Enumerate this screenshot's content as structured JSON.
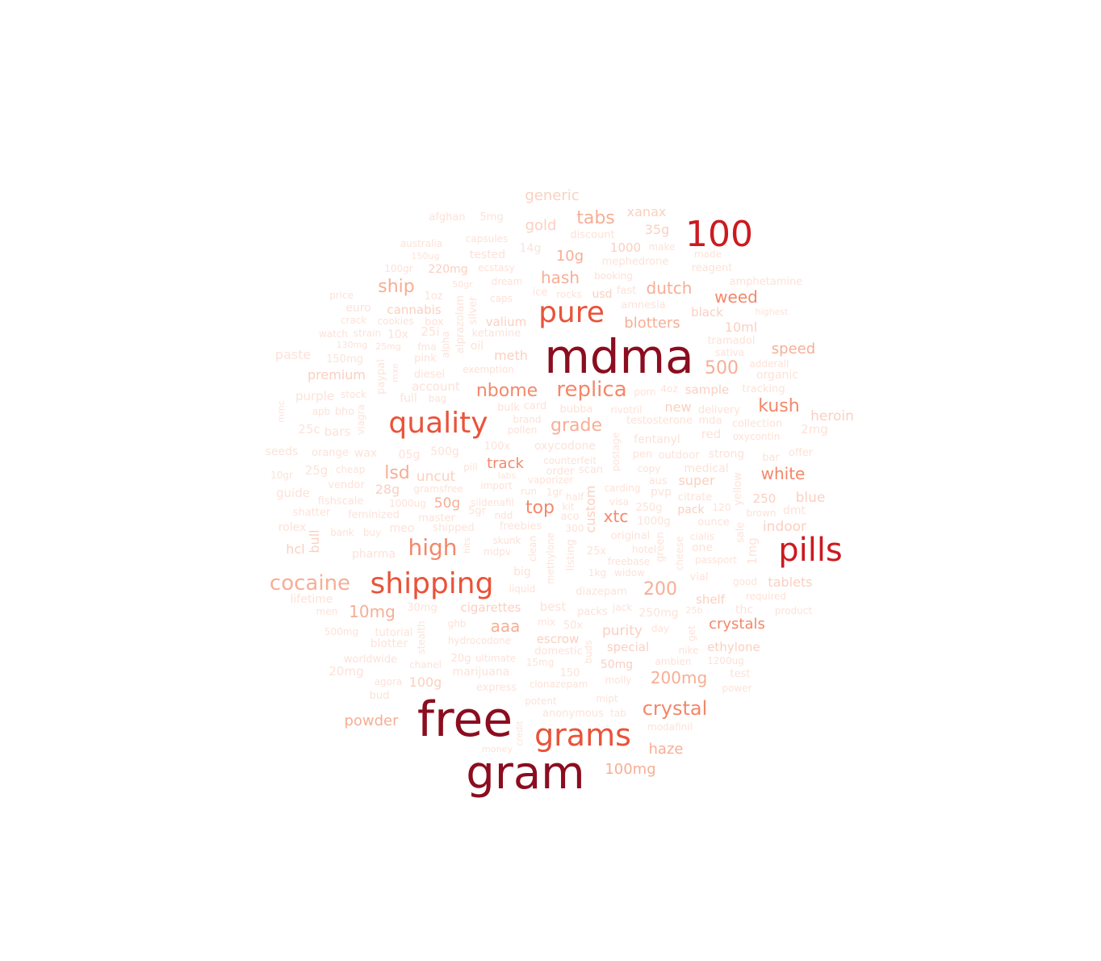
{
  "palette": {
    "c1": "#8b0d1f",
    "c2": "#cc1a1f",
    "c3": "#e9533a",
    "c4": "#f4876a",
    "c5": "#f7ae95",
    "c6": "#fbd0c0",
    "c7": "#fde2d8"
  },
  "words": [
    {
      "text": "mdma",
      "tier": "c1"
    },
    {
      "text": "free",
      "tier": "c1"
    },
    {
      "text": "gram",
      "tier": "c1"
    },
    {
      "text": "100",
      "tier": "c2"
    },
    {
      "text": "pills",
      "tier": "c2"
    },
    {
      "text": "quality",
      "tier": "c3"
    },
    {
      "text": "pure",
      "tier": "c3"
    },
    {
      "text": "shipping",
      "tier": "c3"
    },
    {
      "text": "grams",
      "tier": "c3"
    },
    {
      "text": "high",
      "tier": "c4"
    },
    {
      "text": "replica",
      "tier": "c4"
    },
    {
      "text": "nbome",
      "tier": "c4"
    },
    {
      "text": "cocaine",
      "tier": "c5"
    },
    {
      "text": "crystal",
      "tier": "c4"
    },
    {
      "text": "tabs",
      "tier": "c5"
    },
    {
      "text": "ship",
      "tier": "c5"
    },
    {
      "text": "hash",
      "tier": "c5"
    },
    {
      "text": "dutch",
      "tier": "c5"
    },
    {
      "text": "weed",
      "tier": "c4"
    },
    {
      "text": "blotters",
      "tier": "c5"
    },
    {
      "text": "speed",
      "tier": "c5"
    },
    {
      "text": "500",
      "tier": "c5"
    },
    {
      "text": "kush",
      "tier": "c4"
    },
    {
      "text": "grade",
      "tier": "c5"
    },
    {
      "text": "white",
      "tier": "c4"
    },
    {
      "text": "lsd",
      "tier": "c5"
    },
    {
      "text": "track",
      "tier": "c4"
    },
    {
      "text": "top",
      "tier": "c4"
    },
    {
      "text": "xtc",
      "tier": "c4"
    },
    {
      "text": "200",
      "tier": "c5"
    },
    {
      "text": "10mg",
      "tier": "c5"
    },
    {
      "text": "aaa",
      "tier": "c5"
    },
    {
      "text": "crystals",
      "tier": "c4"
    },
    {
      "text": "200mg",
      "tier": "c5"
    },
    {
      "text": "powder",
      "tier": "c5"
    },
    {
      "text": "haze",
      "tier": "c5"
    },
    {
      "text": "100mg",
      "tier": "c5"
    },
    {
      "text": "10g",
      "tier": "c5"
    },
    {
      "text": "gold",
      "tier": "c6"
    },
    {
      "text": "generic",
      "tier": "c6"
    },
    {
      "text": "xanax",
      "tier": "c6"
    },
    {
      "text": "35g",
      "tier": "c6"
    },
    {
      "text": "heroin",
      "tier": "c6"
    },
    {
      "text": "blue",
      "tier": "c6"
    },
    {
      "text": "indoor",
      "tier": "c6"
    },
    {
      "text": "tablets",
      "tier": "c6"
    },
    {
      "text": "premium",
      "tier": "c6"
    },
    {
      "text": "meth",
      "tier": "c6"
    },
    {
      "text": "valium",
      "tier": "c6"
    },
    {
      "text": "cannabis",
      "tier": "c6"
    },
    {
      "text": "uncut",
      "tier": "c6"
    },
    {
      "text": "28g",
      "tier": "c6"
    },
    {
      "text": "50g",
      "tier": "c5"
    },
    {
      "text": "custom",
      "tier": "c6"
    },
    {
      "text": "purity",
      "tier": "c6"
    },
    {
      "text": "special",
      "tier": "c6"
    },
    {
      "text": "escrow",
      "tier": "c6"
    },
    {
      "text": "cigarettes",
      "tier": "c6"
    },
    {
      "text": "ethylone",
      "tier": "c6"
    },
    {
      "text": "shelf",
      "tier": "c6"
    },
    {
      "text": "100g",
      "tier": "c6"
    },
    {
      "text": "50mg",
      "tier": "c6"
    },
    {
      "text": "bull",
      "tier": "c6"
    },
    {
      "text": "hcl",
      "tier": "c6"
    },
    {
      "text": "10ml",
      "tier": "c6"
    },
    {
      "text": "super",
      "tier": "c6"
    },
    {
      "text": "sample",
      "tier": "c6"
    },
    {
      "text": "new",
      "tier": "c6"
    },
    {
      "text": "250",
      "tier": "c6"
    },
    {
      "text": "pack",
      "tier": "c6"
    },
    {
      "text": "1000",
      "tier": "c6"
    },
    {
      "text": "220mg",
      "tier": "c6"
    },
    {
      "text": "black",
      "tier": "c6"
    },
    {
      "text": "usd",
      "tier": "c6"
    },
    {
      "text": "afghan",
      "tier": "c7"
    },
    {
      "text": "5mg",
      "tier": "c7"
    },
    {
      "text": "discount",
      "tier": "c7"
    },
    {
      "text": "capsules",
      "tier": "c7"
    },
    {
      "text": "14g",
      "tier": "c7"
    },
    {
      "text": "make",
      "tier": "c7"
    },
    {
      "text": "made",
      "tier": "c7"
    },
    {
      "text": "australia",
      "tier": "c7"
    },
    {
      "text": "150ug",
      "tier": "c7"
    },
    {
      "text": "tested",
      "tier": "c7"
    },
    {
      "text": "mephedrone",
      "tier": "c7"
    },
    {
      "text": "reagent",
      "tier": "c7"
    },
    {
      "text": "100gr",
      "tier": "c7"
    },
    {
      "text": "ecstasy",
      "tier": "c7"
    },
    {
      "text": "booking",
      "tier": "c7"
    },
    {
      "text": "amphetamine",
      "tier": "c7"
    },
    {
      "text": "50gr",
      "tier": "c7"
    },
    {
      "text": "dream",
      "tier": "c7"
    },
    {
      "text": "ice",
      "tier": "c7"
    },
    {
      "text": "rocks",
      "tier": "c7"
    },
    {
      "text": "fast",
      "tier": "c7"
    },
    {
      "text": "price",
      "tier": "c7"
    },
    {
      "text": "1oz",
      "tier": "c7"
    },
    {
      "text": "caps",
      "tier": "c7"
    },
    {
      "text": "amnesia",
      "tier": "c7"
    },
    {
      "text": "highest",
      "tier": "c7"
    },
    {
      "text": "euro",
      "tier": "c7"
    },
    {
      "text": "crack",
      "tier": "c7"
    },
    {
      "text": "cookies",
      "tier": "c7"
    },
    {
      "text": "box",
      "tier": "c7"
    },
    {
      "text": "silver",
      "tier": "c7"
    },
    {
      "text": "alprazolam",
      "tier": "c7"
    },
    {
      "text": "watch",
      "tier": "c7"
    },
    {
      "text": "strain",
      "tier": "c7"
    },
    {
      "text": "10x",
      "tier": "c7"
    },
    {
      "text": "25i",
      "tier": "c7"
    },
    {
      "text": "ketamine",
      "tier": "c7"
    },
    {
      "text": "tramadol",
      "tier": "c7"
    },
    {
      "text": "130mg",
      "tier": "c7"
    },
    {
      "text": "25mg",
      "tier": "c7"
    },
    {
      "text": "fma",
      "tier": "c7"
    },
    {
      "text": "alpha",
      "tier": "c7"
    },
    {
      "text": "oil",
      "tier": "c7"
    },
    {
      "text": "sativa",
      "tier": "c7"
    },
    {
      "text": "paste",
      "tier": "c7"
    },
    {
      "text": "150mg",
      "tier": "c7"
    },
    {
      "text": "pink",
      "tier": "c7"
    },
    {
      "text": "exemption",
      "tier": "c7"
    },
    {
      "text": "adderall",
      "tier": "c7"
    },
    {
      "text": "organic",
      "tier": "c7"
    },
    {
      "text": "paypal",
      "tier": "c7"
    },
    {
      "text": "mxe",
      "tier": "c7"
    },
    {
      "text": "diesel",
      "tier": "c7"
    },
    {
      "text": "account",
      "tier": "c7"
    },
    {
      "text": "4oz",
      "tier": "c7"
    },
    {
      "text": "tracking",
      "tier": "c7"
    },
    {
      "text": "purple",
      "tier": "c7"
    },
    {
      "text": "stock",
      "tier": "c7"
    },
    {
      "text": "full",
      "tier": "c7"
    },
    {
      "text": "bag",
      "tier": "c7"
    },
    {
      "text": "porn",
      "tier": "c7"
    },
    {
      "text": "delivery",
      "tier": "c7"
    },
    {
      "text": "collection",
      "tier": "c7"
    },
    {
      "text": "mmc",
      "tier": "c7"
    },
    {
      "text": "apb",
      "tier": "c7"
    },
    {
      "text": "bho",
      "tier": "c7"
    },
    {
      "text": "viagra",
      "tier": "c7"
    },
    {
      "text": "bulk",
      "tier": "c7"
    },
    {
      "text": "card",
      "tier": "c7"
    },
    {
      "text": "bubba",
      "tier": "c7"
    },
    {
      "text": "rivotril",
      "tier": "c7"
    },
    {
      "text": "testosterone",
      "tier": "c7"
    },
    {
      "text": "mda",
      "tier": "c7"
    },
    {
      "text": "oxycontin",
      "tier": "c7"
    },
    {
      "text": "25c",
      "tier": "c7"
    },
    {
      "text": "bars",
      "tier": "c7"
    },
    {
      "text": "brand",
      "tier": "c7"
    },
    {
      "text": "pollen",
      "tier": "c7"
    },
    {
      "text": "postage",
      "tier": "c7"
    },
    {
      "text": "fentanyl",
      "tier": "c7"
    },
    {
      "text": "red",
      "tier": "c7"
    },
    {
      "text": "2mg",
      "tier": "c7"
    },
    {
      "text": "seeds",
      "tier": "c7"
    },
    {
      "text": "orange",
      "tier": "c7"
    },
    {
      "text": "wax",
      "tier": "c7"
    },
    {
      "text": "05g",
      "tier": "c7"
    },
    {
      "text": "500g",
      "tier": "c7"
    },
    {
      "text": "100x",
      "tier": "c7"
    },
    {
      "text": "oxycodone",
      "tier": "c7"
    },
    {
      "text": "pen",
      "tier": "c7"
    },
    {
      "text": "outdoor",
      "tier": "c7"
    },
    {
      "text": "strong",
      "tier": "c7"
    },
    {
      "text": "offer",
      "tier": "c7"
    },
    {
      "text": "bar",
      "tier": "c7"
    },
    {
      "text": "10gr",
      "tier": "c7"
    },
    {
      "text": "25g",
      "tier": "c7"
    },
    {
      "text": "cheap",
      "tier": "c7"
    },
    {
      "text": "pill",
      "tier": "c7"
    },
    {
      "text": "counterfeit",
      "tier": "c7"
    },
    {
      "text": "labs",
      "tier": "c7"
    },
    {
      "text": "order",
      "tier": "c7"
    },
    {
      "text": "scan",
      "tier": "c7"
    },
    {
      "text": "copy",
      "tier": "c7"
    },
    {
      "text": "medical",
      "tier": "c7"
    },
    {
      "text": "aus",
      "tier": "c7"
    },
    {
      "text": "guide",
      "tier": "c7"
    },
    {
      "text": "vendor",
      "tier": "c7"
    },
    {
      "text": "gramsfree",
      "tier": "c7"
    },
    {
      "text": "import",
      "tier": "c7"
    },
    {
      "text": "vaporizer",
      "tier": "c7"
    },
    {
      "text": "carding",
      "tier": "c7"
    },
    {
      "text": "pvp",
      "tier": "c7"
    },
    {
      "text": "fishscale",
      "tier": "c7"
    },
    {
      "text": "run",
      "tier": "c7"
    },
    {
      "text": "1gr",
      "tier": "c7"
    },
    {
      "text": "half",
      "tier": "c7"
    },
    {
      "text": "citrate",
      "tier": "c7"
    },
    {
      "text": "yellow",
      "tier": "c7"
    },
    {
      "text": "dmt",
      "tier": "c7"
    },
    {
      "text": "1000ug",
      "tier": "c7"
    },
    {
      "text": "sildenafil",
      "tier": "c7"
    },
    {
      "text": "kit",
      "tier": "c7"
    },
    {
      "text": "visa",
      "tier": "c7"
    },
    {
      "text": "250g",
      "tier": "c7"
    },
    {
      "text": "120",
      "tier": "c7"
    },
    {
      "text": "brown",
      "tier": "c7"
    },
    {
      "text": "shatter",
      "tier": "c7"
    },
    {
      "text": "feminized",
      "tier": "c7"
    },
    {
      "text": "master",
      "tier": "c7"
    },
    {
      "text": "5gr",
      "tier": "c7"
    },
    {
      "text": "ndd",
      "tier": "c7"
    },
    {
      "text": "aco",
      "tier": "c7"
    },
    {
      "text": "1000g",
      "tier": "c7"
    },
    {
      "text": "ounce",
      "tier": "c7"
    },
    {
      "text": "rolex",
      "tier": "c7"
    },
    {
      "text": "bank",
      "tier": "c7"
    },
    {
      "text": "buy",
      "tier": "c7"
    },
    {
      "text": "meo",
      "tier": "c7"
    },
    {
      "text": "shipped",
      "tier": "c7"
    },
    {
      "text": "freebies",
      "tier": "c7"
    },
    {
      "text": "300",
      "tier": "c7"
    },
    {
      "text": "original",
      "tier": "c7"
    },
    {
      "text": "green",
      "tier": "c7"
    },
    {
      "text": "cialis",
      "tier": "c7"
    },
    {
      "text": "sale",
      "tier": "c7"
    },
    {
      "text": "skunk",
      "tier": "c7"
    },
    {
      "text": "hits",
      "tier": "c7"
    },
    {
      "text": "mdpv",
      "tier": "c7"
    },
    {
      "text": "clean",
      "tier": "c7"
    },
    {
      "text": "methylone",
      "tier": "c7"
    },
    {
      "text": "listing",
      "tier": "c7"
    },
    {
      "text": "25x",
      "tier": "c7"
    },
    {
      "text": "hotel",
      "tier": "c7"
    },
    {
      "text": "cheese",
      "tier": "c7"
    },
    {
      "text": "one",
      "tier": "c7"
    },
    {
      "text": "1mg",
      "tier": "c7"
    },
    {
      "text": "pharma",
      "tier": "c7"
    },
    {
      "text": "freebase",
      "tier": "c7"
    },
    {
      "text": "passport",
      "tier": "c7"
    },
    {
      "text": "big",
      "tier": "c7"
    },
    {
      "text": "1kg",
      "tier": "c7"
    },
    {
      "text": "widow",
      "tier": "c7"
    },
    {
      "text": "vial",
      "tier": "c7"
    },
    {
      "text": "good",
      "tier": "c7"
    },
    {
      "text": "lifetime",
      "tier": "c7"
    },
    {
      "text": "liquid",
      "tier": "c7"
    },
    {
      "text": "diazepam",
      "tier": "c7"
    },
    {
      "text": "required",
      "tier": "c7"
    },
    {
      "text": "men",
      "tier": "c7"
    },
    {
      "text": "30mg",
      "tier": "c7"
    },
    {
      "text": "best",
      "tier": "c7"
    },
    {
      "text": "packs",
      "tier": "c7"
    },
    {
      "text": "jack",
      "tier": "c7"
    },
    {
      "text": "250mg",
      "tier": "c7"
    },
    {
      "text": "25b",
      "tier": "c7"
    },
    {
      "text": "thc",
      "tier": "c7"
    },
    {
      "text": "product",
      "tier": "c7"
    },
    {
      "text": "ghb",
      "tier": "c7"
    },
    {
      "text": "mix",
      "tier": "c7"
    },
    {
      "text": "50x",
      "tier": "c7"
    },
    {
      "text": "day",
      "tier": "c7"
    },
    {
      "text": "500mg",
      "tier": "c7"
    },
    {
      "text": "tutorial",
      "tier": "c7"
    },
    {
      "text": "stealth",
      "tier": "c7"
    },
    {
      "text": "hydrocodone",
      "tier": "c7"
    },
    {
      "text": "get",
      "tier": "c7"
    },
    {
      "text": "domestic",
      "tier": "c7"
    },
    {
      "text": "nike",
      "tier": "c7"
    },
    {
      "text": "worldwide",
      "tier": "c7"
    },
    {
      "text": "20g",
      "tier": "c7"
    },
    {
      "text": "ultimate",
      "tier": "c7"
    },
    {
      "text": "buds",
      "tier": "c7"
    },
    {
      "text": "ambien",
      "tier": "c7"
    },
    {
      "text": "1200ug",
      "tier": "c7"
    },
    {
      "text": "chanel",
      "tier": "c7"
    },
    {
      "text": "marijuana",
      "tier": "c7"
    },
    {
      "text": "15mg",
      "tier": "c7"
    },
    {
      "text": "150",
      "tier": "c7"
    },
    {
      "text": "test",
      "tier": "c7"
    },
    {
      "text": "20mg",
      "tier": "c7"
    },
    {
      "text": "agora",
      "tier": "c7"
    },
    {
      "text": "molly",
      "tier": "c7"
    },
    {
      "text": "clonazepam",
      "tier": "c7"
    },
    {
      "text": "express",
      "tier": "c7"
    },
    {
      "text": "power",
      "tier": "c7"
    },
    {
      "text": "bud",
      "tier": "c7"
    },
    {
      "text": "mipt",
      "tier": "c7"
    },
    {
      "text": "potent",
      "tier": "c7"
    },
    {
      "text": "anonymous",
      "tier": "c7"
    },
    {
      "text": "tab",
      "tier": "c7"
    },
    {
      "text": "modafinil",
      "tier": "c7"
    },
    {
      "text": "credit",
      "tier": "c7"
    },
    {
      "text": "money",
      "tier": "c7"
    },
    {
      "text": "blotter",
      "tier": "c7"
    }
  ]
}
